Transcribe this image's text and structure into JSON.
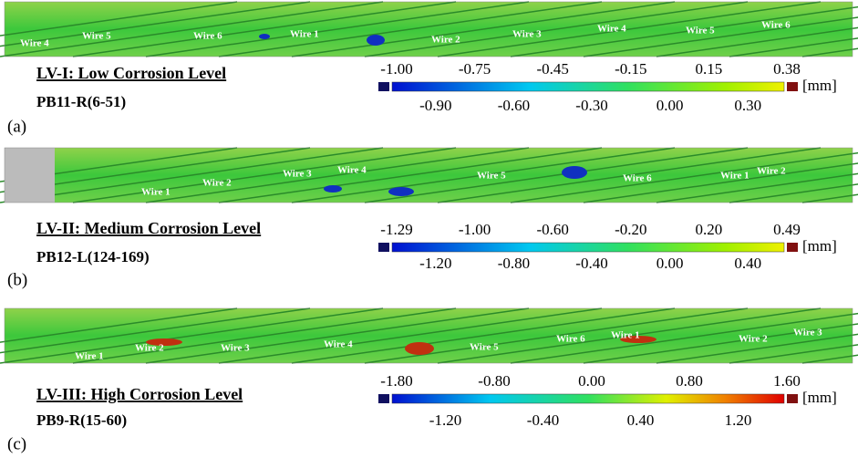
{
  "panels": [
    {
      "image_labels": [
        "Wire 4",
        "Wire 5",
        "Wire 6",
        "Wire 1",
        "Wire 2",
        "Wire 3",
        "Wire 4",
        "Wire 5",
        "Wire 6"
      ],
      "level": "LV-I: Low Corrosion Level",
      "specimen": "PB11-R(6-51)",
      "label": "(a)",
      "scale_top": [
        "-1.00",
        "-0.75",
        "-0.45",
        "-0.15",
        "0.15",
        "0.38"
      ],
      "scale_bottom": [
        "-0.90",
        "-0.60",
        "-0.30",
        "0.00",
        "0.30"
      ],
      "unit": "[mm]"
    },
    {
      "image_labels": [
        "Wire 1",
        "Wire 2",
        "Wire 3",
        "Wire 4",
        "Wire 5",
        "Wire 6",
        "Wire 1",
        "Wire 2"
      ],
      "level": "LV-II: Medium Corrosion Level",
      "specimen": "PB12-L(124-169)",
      "label": "(b)",
      "scale_top": [
        "-1.29",
        "-1.00",
        "-0.60",
        "-0.20",
        "0.20",
        "0.49"
      ],
      "scale_bottom": [
        "-1.20",
        "-0.80",
        "-0.40",
        "0.00",
        "0.40"
      ],
      "unit": "[mm]"
    },
    {
      "image_labels": [
        "Wire 1",
        "Wire 2",
        "Wire 3",
        "Wire 4",
        "Wire 5",
        "Wire 6",
        "Wire 1",
        "Wire 2",
        "Wire 3"
      ],
      "level": "LV-III: High Corrosion Level",
      "specimen": "PB9-R(15-60)",
      "label": "(c)",
      "scale_top": [
        "-1.80",
        "-0.80",
        "0.00",
        "0.80",
        "1.60"
      ],
      "scale_bottom": [
        "-1.20",
        "-0.40",
        "0.40",
        "1.20"
      ],
      "unit": "[mm]"
    }
  ]
}
